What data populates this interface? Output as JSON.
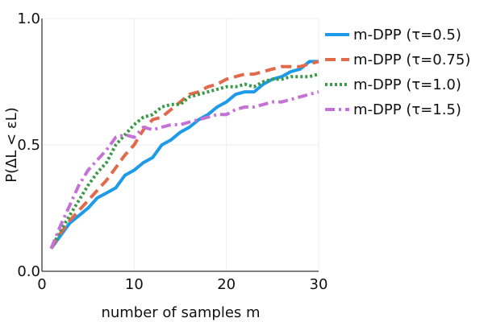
{
  "chart_data": {
    "type": "line",
    "title": "",
    "xlabel": "number of samples m",
    "ylabel": "P(ΔL < εL)",
    "xlim": [
      0,
      30
    ],
    "ylim": [
      0,
      1
    ],
    "xticks": [
      0,
      10,
      20,
      30
    ],
    "xtick_labels": [
      "0",
      "10",
      "20",
      "30"
    ],
    "yticks": [
      0,
      0.5,
      1
    ],
    "ytick_labels": [
      "0.0",
      "0.5",
      "1.0"
    ],
    "grid": true,
    "legend_position": "top-right",
    "x": [
      1,
      2,
      3,
      4,
      5,
      6,
      7,
      8,
      9,
      10,
      11,
      12,
      13,
      14,
      15,
      16,
      17,
      18,
      19,
      20,
      21,
      22,
      23,
      24,
      25,
      26,
      27,
      28,
      29,
      30
    ],
    "series": [
      {
        "name": "m-DPP (τ=0.5)",
        "color": "#1E9BE8",
        "style": "solid",
        "values": [
          0.09,
          0.14,
          0.19,
          0.22,
          0.25,
          0.29,
          0.31,
          0.33,
          0.38,
          0.4,
          0.43,
          0.45,
          0.5,
          0.52,
          0.55,
          0.57,
          0.6,
          0.62,
          0.65,
          0.67,
          0.7,
          0.71,
          0.71,
          0.74,
          0.76,
          0.77,
          0.79,
          0.8,
          0.83,
          0.83
        ]
      },
      {
        "name": "m-DPP (τ=0.75)",
        "color": "#E2694A",
        "style": "dashed",
        "values": [
          0.09,
          0.15,
          0.2,
          0.24,
          0.28,
          0.32,
          0.36,
          0.41,
          0.46,
          0.5,
          0.56,
          0.6,
          0.61,
          0.64,
          0.67,
          0.7,
          0.71,
          0.73,
          0.74,
          0.76,
          0.77,
          0.78,
          0.78,
          0.79,
          0.8,
          0.81,
          0.81,
          0.81,
          0.82,
          0.83
        ]
      },
      {
        "name": "m-DPP (τ=1.0)",
        "color": "#3A9A48",
        "style": "dotted",
        "values": [
          0.09,
          0.16,
          0.22,
          0.28,
          0.34,
          0.39,
          0.43,
          0.5,
          0.54,
          0.58,
          0.61,
          0.62,
          0.65,
          0.66,
          0.66,
          0.69,
          0.7,
          0.71,
          0.72,
          0.73,
          0.73,
          0.74,
          0.73,
          0.75,
          0.76,
          0.76,
          0.77,
          0.77,
          0.77,
          0.78
        ]
      },
      {
        "name": "m-DPP (τ=1.5)",
        "color": "#C571D8",
        "style": "dashdot",
        "values": [
          0.09,
          0.18,
          0.26,
          0.34,
          0.4,
          0.44,
          0.48,
          0.53,
          0.54,
          0.53,
          0.57,
          0.56,
          0.57,
          0.58,
          0.58,
          0.59,
          0.6,
          0.61,
          0.62,
          0.62,
          0.64,
          0.65,
          0.65,
          0.66,
          0.67,
          0.67,
          0.68,
          0.69,
          0.7,
          0.71
        ]
      }
    ]
  }
}
